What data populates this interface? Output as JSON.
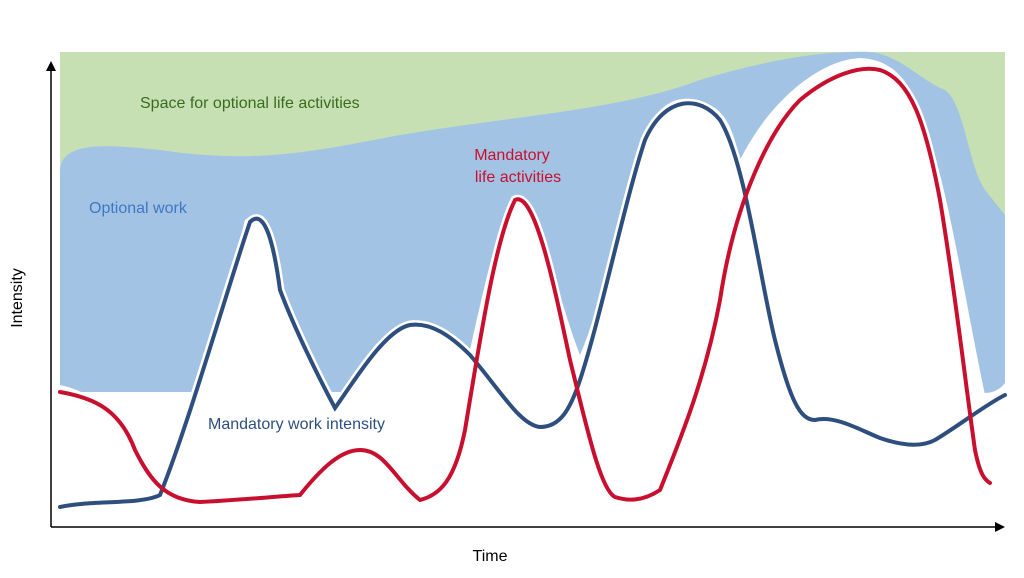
{
  "axes": {
    "x_label": "Time",
    "y_label": "Intensity"
  },
  "labels": {
    "optional_life": "Space for optional life activities",
    "optional_work": "Optional work",
    "mandatory_life_line1": "Mandatory",
    "mandatory_life_line2": "life activities",
    "mandatory_work": "Mandatory work intensity"
  },
  "colors": {
    "optional_life_area": "#c6e0b4",
    "optional_work_area": "#a3c3e5",
    "mandatory_work_line": "#2e4f7e",
    "mandatory_life_line": "#c8102e",
    "optional_life_text": "#3a6b1e",
    "optional_work_text": "#3f78c2",
    "mandatory_life_text": "#c8102e",
    "mandatory_work_text": "#2e4f7e"
  }
}
